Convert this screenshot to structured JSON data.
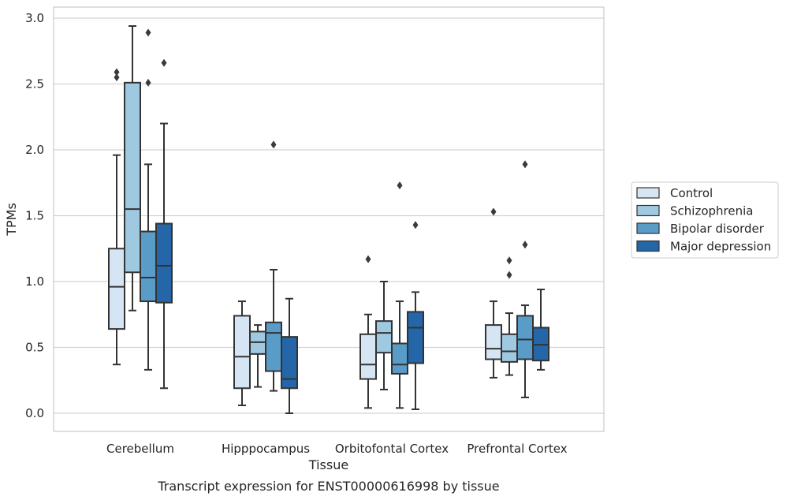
{
  "chart_data": {
    "type": "box",
    "xlabel": "Tissue",
    "ylabel": "TPMs",
    "ylim": [
      -0.14,
      3.08
    ],
    "yticks": [
      "0.0",
      "0.5",
      "1.0",
      "1.5",
      "2.0",
      "2.5",
      "3.0"
    ],
    "grid": true,
    "legend_position": "center-right",
    "caption": "Transcript expression for ENST00000616998 by tissue",
    "categories": [
      "Cerebellum",
      "Hipppocampus",
      "Orbitofontal Cortex",
      "Prefrontal Cortex"
    ],
    "series": [
      {
        "name": "Control",
        "color": "#d6e5f4",
        "boxes": [
          {
            "whislo": 0.37,
            "q1": 0.64,
            "med": 0.96,
            "q3": 1.25,
            "whishi": 1.96,
            "fliers": [
              2.55,
              2.59
            ]
          },
          {
            "whislo": 0.06,
            "q1": 0.19,
            "med": 0.43,
            "q3": 0.74,
            "whishi": 0.85,
            "fliers": []
          },
          {
            "whislo": 0.04,
            "q1": 0.26,
            "med": 0.37,
            "q3": 0.6,
            "whishi": 0.75,
            "fliers": [
              1.17
            ]
          },
          {
            "whislo": 0.27,
            "q1": 0.41,
            "med": 0.49,
            "q3": 0.67,
            "whishi": 0.85,
            "fliers": [
              1.53
            ]
          }
        ]
      },
      {
        "name": "Schizophrenia",
        "color": "#9fc9e0",
        "boxes": [
          {
            "whislo": 0.78,
            "q1": 1.07,
            "med": 1.55,
            "q3": 2.51,
            "whishi": 2.94,
            "fliers": []
          },
          {
            "whislo": 0.2,
            "q1": 0.45,
            "med": 0.54,
            "q3": 0.62,
            "whishi": 0.67,
            "fliers": []
          },
          {
            "whislo": 0.18,
            "q1": 0.46,
            "med": 0.61,
            "q3": 0.7,
            "whishi": 1.0,
            "fliers": []
          },
          {
            "whislo": 0.29,
            "q1": 0.39,
            "med": 0.47,
            "q3": 0.6,
            "whishi": 0.76,
            "fliers": [
              1.05,
              1.16
            ]
          }
        ]
      },
      {
        "name": "Bipolar disorder",
        "color": "#5a9cc8",
        "boxes": [
          {
            "whislo": 0.33,
            "q1": 0.85,
            "med": 1.03,
            "q3": 1.38,
            "whishi": 1.89,
            "fliers": [
              2.51,
              2.89
            ]
          },
          {
            "whislo": 0.17,
            "q1": 0.32,
            "med": 0.61,
            "q3": 0.69,
            "whishi": 1.09,
            "fliers": [
              2.04
            ]
          },
          {
            "whislo": 0.04,
            "q1": 0.3,
            "med": 0.37,
            "q3": 0.53,
            "whishi": 0.85,
            "fliers": [
              1.73
            ]
          },
          {
            "whislo": 0.12,
            "q1": 0.41,
            "med": 0.56,
            "q3": 0.74,
            "whishi": 0.82,
            "fliers": [
              1.28,
              1.89
            ]
          }
        ]
      },
      {
        "name": "Major depression",
        "color": "#2466a8",
        "boxes": [
          {
            "whislo": 0.19,
            "q1": 0.84,
            "med": 1.12,
            "q3": 1.44,
            "whishi": 2.2,
            "fliers": [
              2.66
            ]
          },
          {
            "whislo": 0.0,
            "q1": 0.19,
            "med": 0.26,
            "q3": 0.58,
            "whishi": 0.87,
            "fliers": []
          },
          {
            "whislo": 0.03,
            "q1": 0.38,
            "med": 0.65,
            "q3": 0.77,
            "whishi": 0.92,
            "fliers": [
              1.43
            ]
          },
          {
            "whislo": 0.33,
            "q1": 0.4,
            "med": 0.52,
            "q3": 0.65,
            "whishi": 0.94,
            "fliers": []
          }
        ]
      }
    ]
  }
}
